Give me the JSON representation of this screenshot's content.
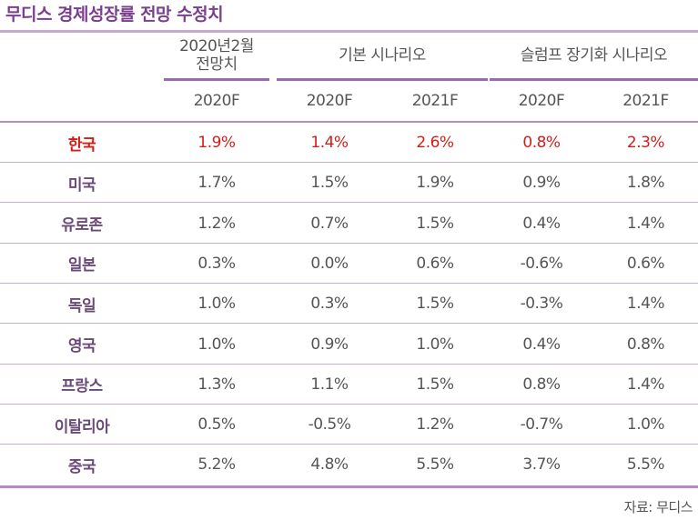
{
  "title": "무디스 경제성장률 전망 수정치",
  "header": {
    "groups": [
      {
        "label": "2020년2월\n전망치",
        "years": [
          "2020F"
        ]
      },
      {
        "label": "기본 시나리오",
        "years": [
          "2020F",
          "2021F"
        ]
      },
      {
        "label": "슬럼프 장기화 시나리오",
        "years": [
          "2020F",
          "2021F"
        ]
      }
    ]
  },
  "rows": [
    {
      "country": "한국",
      "values": [
        "1.9%",
        "1.4%",
        "2.6%",
        "0.8%",
        "2.3%"
      ],
      "highlight": true
    },
    {
      "country": "미국",
      "values": [
        "1.7%",
        "1.5%",
        "1.9%",
        "0.9%",
        "1.8%"
      ]
    },
    {
      "country": "유로존",
      "values": [
        "1.2%",
        "0.7%",
        "1.5%",
        "0.4%",
        "1.4%"
      ]
    },
    {
      "country": "일본",
      "values": [
        "0.3%",
        "0.0%",
        "0.6%",
        "-0.6%",
        "0.6%"
      ]
    },
    {
      "country": "독일",
      "values": [
        "1.0%",
        "0.3%",
        "1.5%",
        "-0.3%",
        "1.4%"
      ]
    },
    {
      "country": "영국",
      "values": [
        "1.0%",
        "0.9%",
        "1.0%",
        "0.4%",
        "0.8%"
      ]
    },
    {
      "country": "프랑스",
      "values": [
        "1.3%",
        "1.1%",
        "1.5%",
        "0.8%",
        "1.4%"
      ]
    },
    {
      "country": "이탈리아",
      "values": [
        "0.5%",
        "-0.5%",
        "1.2%",
        "-0.7%",
        "1.0%"
      ]
    },
    {
      "country": "중국",
      "values": [
        "5.2%",
        "4.8%",
        "5.5%",
        "3.7%",
        "5.5%"
      ]
    }
  ],
  "source": "자료: 무디스",
  "colors": {
    "accent": "#7b3f8f",
    "highlight": "#d0201c",
    "rule": "#b58ac5"
  }
}
